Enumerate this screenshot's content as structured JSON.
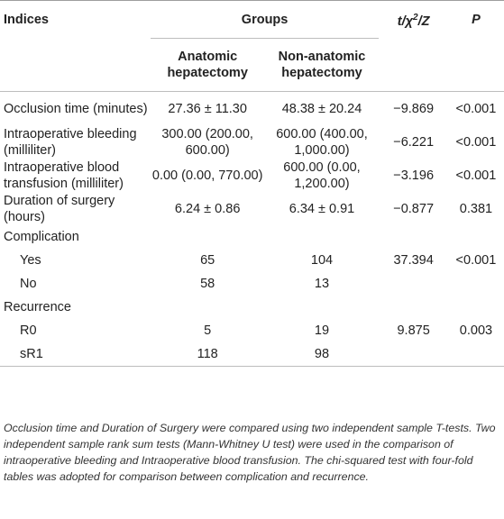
{
  "header": {
    "indices": "Indices",
    "groups": "Groups",
    "stat_prefix": "t/χ",
    "stat_sup": "2",
    "stat_suffix": "/Z",
    "p": "P",
    "group1": "Anatomic hepatectomy",
    "group2": "Non-anatomic hepatectomy"
  },
  "rows": [
    {
      "label": "Occlusion time (minutes)",
      "g1": "27.36 ± 11.30",
      "g2": "48.38 ± 20.24",
      "stat": "−9.869",
      "p": "<0.001"
    },
    {
      "label": "Intraoperative bleeding (milliliter)",
      "g1": "300.00 (200.00, 600.00)",
      "g2": "600.00 (400.00, 1,000.00)",
      "stat": "−6.221",
      "p": "<0.001"
    },
    {
      "label": "Intraoperative blood transfusion (milliliter)",
      "g1": "0.00 (0.00, 770.00)",
      "g2": "600.00 (0.00, 1,200.00)",
      "stat": "−3.196",
      "p": "<0.001"
    },
    {
      "label": "Duration of surgery (hours)",
      "g1": "6.24 ± 0.86",
      "g2": "6.34 ± 0.91",
      "stat": "−0.877",
      "p": "0.381"
    }
  ],
  "complication": {
    "label": "Complication",
    "yes": {
      "label": "Yes",
      "g1": "65",
      "g2": "104",
      "stat": "37.394",
      "p": "<0.001"
    },
    "no": {
      "label": "No",
      "g1": "58",
      "g2": "13"
    }
  },
  "recurrence": {
    "label": "Recurrence",
    "r0": {
      "label": "R0",
      "g1": "5",
      "g2": "19",
      "stat": "9.875",
      "p": "0.003"
    },
    "sr1": {
      "label": "sR1",
      "g1": "118",
      "g2": "98"
    }
  },
  "footnote": "Occlusion time and Duration of Surgery were compared using two independent sample T-tests. Two independent sample rank sum tests (Mann-Whitney U test) were used in the comparison of intraoperative bleeding and Intraoperative blood transfusion. The chi-squared test with four-fold tables was adopted for comparison between complication and recurrence."
}
